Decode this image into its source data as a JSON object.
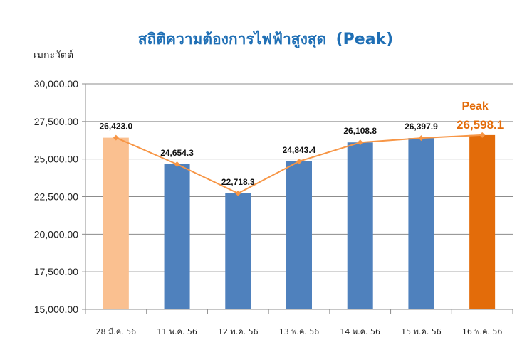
{
  "chart_data": {
    "type": "bar",
    "title": "สถิติความต้องการไฟฟ้าสูงสุด",
    "title_suffix": "(Peak)",
    "ylabel": "เมกะวัตต์",
    "xlabel": "",
    "ylim": [
      15000,
      30000
    ],
    "yticks": [
      "15,000.00",
      "17,500.00",
      "20,000.00",
      "22,500.00",
      "25,000.00",
      "27,500.00",
      "30,000.00"
    ],
    "ytick_values": [
      15000,
      17500,
      20000,
      22500,
      25000,
      27500,
      30000
    ],
    "grid": true,
    "categories": [
      "28 มี.ค. 56",
      "11 พ.ค. 56",
      "12 พ.ค. 56",
      "13 พ.ค. 56",
      "14 พ.ค. 56",
      "15 พ.ค. 56",
      "16 พ.ค. 56"
    ],
    "values": [
      26423.0,
      24654.3,
      22718.3,
      24843.4,
      26108.8,
      26397.9,
      26598.1
    ],
    "data_labels": [
      "26,423.0",
      "24,654.3",
      "22,718.3",
      "24,843.4",
      "26,108.8",
      "26,397.9",
      "26,598.1"
    ],
    "bar_colors": [
      "#FAC090",
      "#4F81BD",
      "#4F81BD",
      "#4F81BD",
      "#4F81BD",
      "#4F81BD",
      "#E36C0A"
    ],
    "line_color": "#F79646",
    "line_values": [
      26423.0,
      24654.3,
      22718.3,
      24843.4,
      26108.8,
      26397.9,
      26598.1
    ],
    "peak_annotation": "Peak",
    "peak_index": 6,
    "title_color": "#1F6FB5",
    "peak_color": "#E36C0A"
  }
}
